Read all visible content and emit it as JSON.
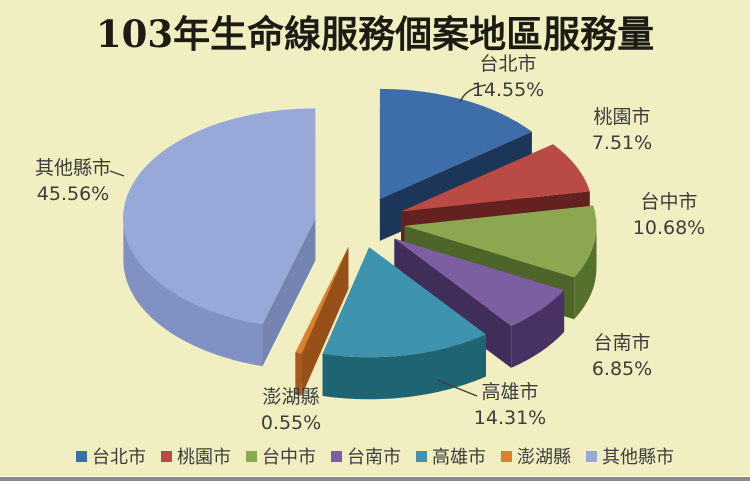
{
  "page": {
    "background": "#F1EEC2",
    "bottom_edge_color": "#8a8a8a",
    "text_color": "#3d3d3b"
  },
  "chart_data": {
    "type": "pie",
    "effect": "3d-exploded",
    "title": "103年生命線服務個案地區服務量",
    "legend_position": "bottom",
    "unit": "%",
    "series": [
      {
        "key": "taipei",
        "name": "台北市",
        "value": 14.55,
        "pct_text": "14.55%",
        "color": "#3E6EA9",
        "side_color": "#1F3C63"
      },
      {
        "key": "taoyuan",
        "name": "桃園市",
        "value": 7.51,
        "pct_text": "7.51%",
        "color": "#BA4A44",
        "side_color": "#6F2523"
      },
      {
        "key": "taichung",
        "name": "台中市",
        "value": 10.68,
        "pct_text": "10.68%",
        "color": "#8CA750",
        "side_color": "#56702D"
      },
      {
        "key": "tainan",
        "name": "台南市",
        "value": 6.85,
        "pct_text": "6.85%",
        "color": "#7C5FA1",
        "side_color": "#483264"
      },
      {
        "key": "kaohsiung",
        "name": "高雄市",
        "value": 14.31,
        "pct_text": "14.31%",
        "color": "#3E93AE",
        "side_color": "#1E6473"
      },
      {
        "key": "penghu",
        "name": "澎湖縣",
        "value": 0.55,
        "pct_text": "0.55%",
        "color": "#DC8030",
        "side_color": "#A8591B"
      },
      {
        "key": "others",
        "name": "其他縣市",
        "value": 45.56,
        "pct_text": "45.56%",
        "color": "#98A9D9",
        "side_color": "#8191C4"
      }
    ]
  }
}
